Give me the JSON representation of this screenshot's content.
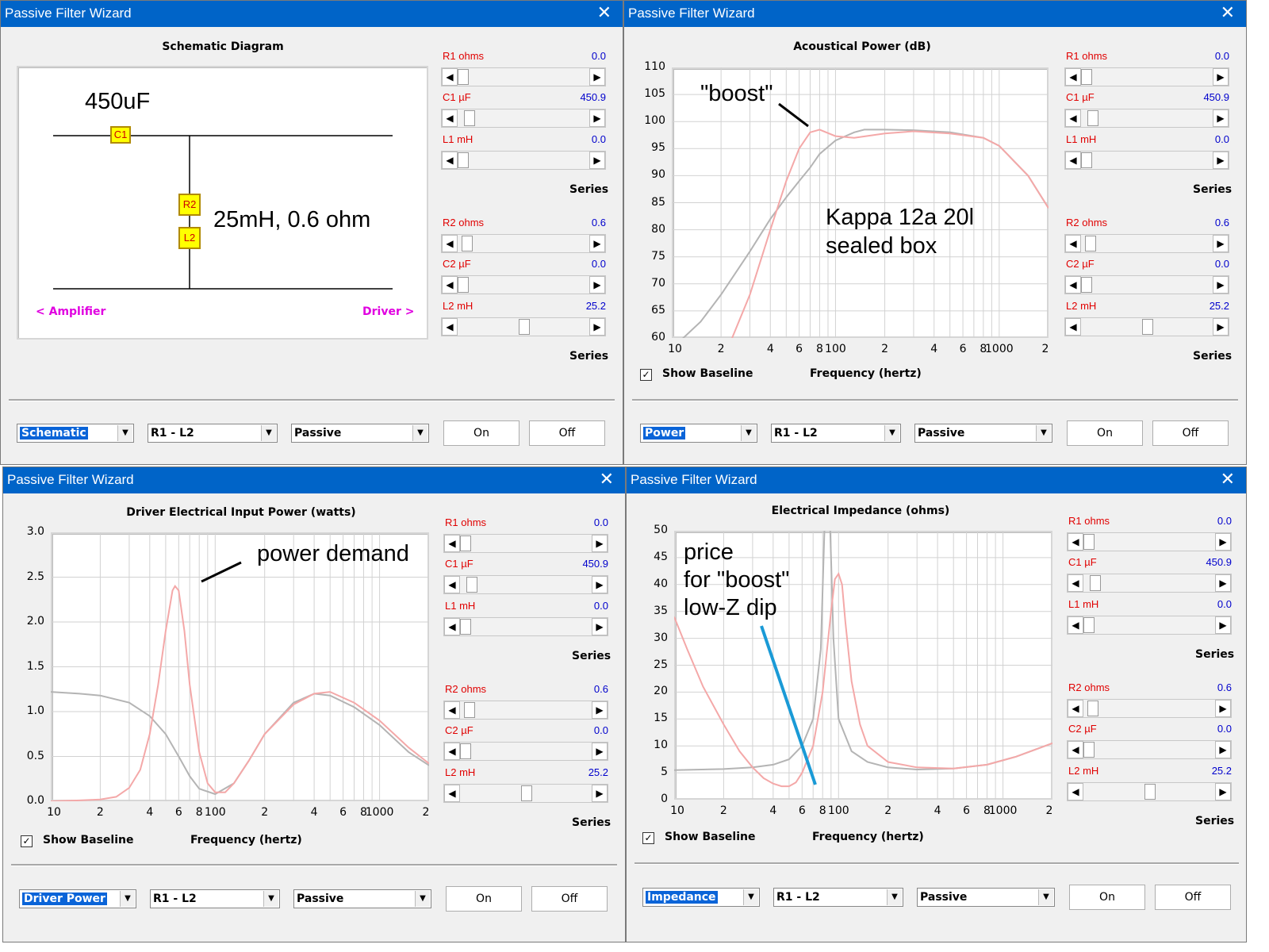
{
  "windows": [
    {
      "title": "Passive Filter Wizard",
      "panel_title": "Schematic Diagram",
      "view_selected": "Schematic",
      "network_selected": "R1 - L2",
      "type_selected": "Passive",
      "on_label": "On",
      "off_label": "Off"
    },
    {
      "title": "Passive Filter Wizard",
      "panel_title": "Acoustical Power (dB)",
      "view_selected": "Power",
      "network_selected": "R1 - L2",
      "type_selected": "Passive",
      "on_label": "On",
      "off_label": "Off",
      "show_baseline": "Show Baseline",
      "x_title": "Frequency (hertz)"
    },
    {
      "title": "Passive Filter Wizard",
      "panel_title": "Driver Electrical Input Power (watts)",
      "view_selected": "Driver Power",
      "network_selected": "R1 - L2",
      "type_selected": "Passive",
      "on_label": "On",
      "off_label": "Off",
      "show_baseline": "Show Baseline",
      "x_title": "Frequency (hertz)"
    },
    {
      "title": "Passive Filter Wizard",
      "panel_title": "Electrical Impedance (ohms)",
      "view_selected": "Impedance",
      "network_selected": "R1 - L2",
      "type_selected": "Passive",
      "on_label": "On",
      "off_label": "Off",
      "show_baseline": "Show Baseline",
      "x_title": "Frequency (hertz)"
    }
  ],
  "sliders": [
    {
      "label": "R1  ohms",
      "value": "0.0",
      "fraction": 0.0
    },
    {
      "label": "C1  µF",
      "value": "450.9",
      "fraction": 0.05
    },
    {
      "label": "L1  mH",
      "value": "0.0",
      "fraction": 0.0
    },
    {
      "label": "R2  ohms",
      "value": "0.6",
      "fraction": 0.03
    },
    {
      "label": "C2  µF",
      "value": "0.0",
      "fraction": 0.0
    },
    {
      "label": "L2  mH",
      "value": "25.2",
      "fraction": 0.5
    }
  ],
  "series_label": "Series",
  "schematic": {
    "c1_label": "C1",
    "r2_label": "R2",
    "l2_label": "L2",
    "amplifier": "<  Amplifier",
    "driver": "Driver  >",
    "annotation_c1": "450uF",
    "annotation_branch": "25mH, 0.6 ohm"
  },
  "annotations": {
    "boost": "\"boost\"",
    "box_line1": "Kappa 12a 20l",
    "box_line2": "sealed box",
    "power_demand": "power demand",
    "price_line1": "price",
    "price_line2": "for \"boost\"",
    "price_line3": "low-Z dip"
  },
  "colors": {
    "baseline": "#b4b4b4",
    "filtered": "#f4a8a8",
    "grid": "#d2d2d2",
    "title_bar": "#0064c8",
    "label_red": "#e00000",
    "value_blue": "#0000cc",
    "pointer_blue": "#1a9ad6"
  },
  "chart_data": [
    {
      "type": "line",
      "title": "Acoustical Power (dB)",
      "xlabel": "Frequency (hertz)",
      "x_scale": "log",
      "xlim": [
        10,
        2000
      ],
      "ylim": [
        60,
        110
      ],
      "y_ticks": [
        "110",
        "105",
        "100",
        "95",
        "90",
        "85",
        "80",
        "75",
        "70",
        "65",
        "60"
      ],
      "x_ticks": [
        "10",
        "2",
        "4",
        "6",
        "8",
        "100",
        "2",
        "4",
        "6",
        "8",
        "1000",
        "2"
      ],
      "series": [
        {
          "values": [
            [
              10,
              58
            ],
            [
              15,
              63
            ],
            [
              20,
              68
            ],
            [
              30,
              76
            ],
            [
              40,
              82
            ],
            [
              50,
              86
            ],
            [
              60,
              89
            ],
            [
              70,
              91.5
            ],
            [
              80,
              94
            ],
            [
              100,
              96.5
            ],
            [
              130,
              98
            ],
            [
              150,
              98.5
            ],
            [
              200,
              98.5
            ],
            [
              300,
              98.4
            ],
            [
              500,
              98
            ],
            [
              800,
              97
            ],
            [
              1000,
              95.5
            ],
            [
              1500,
              90
            ],
            [
              2000,
              84
            ]
          ]
        },
        {
          "values": [
            [
              20,
              55
            ],
            [
              30,
              68
            ],
            [
              40,
              80
            ],
            [
              50,
              89
            ],
            [
              60,
              95
            ],
            [
              70,
              98
            ],
            [
              80,
              98.5
            ],
            [
              100,
              97.3
            ],
            [
              130,
              97
            ],
            [
              200,
              97.8
            ],
            [
              300,
              98.2
            ],
            [
              500,
              97.8
            ],
            [
              800,
              97
            ],
            [
              1000,
              95.5
            ],
            [
              1500,
              90
            ],
            [
              2000,
              84
            ]
          ]
        }
      ]
    },
    {
      "type": "line",
      "title": "Driver Electrical Input Power (watts)",
      "xlabel": "Frequency (hertz)",
      "x_scale": "log",
      "xlim": [
        10,
        2000
      ],
      "ylim": [
        0,
        3.0
      ],
      "y_ticks": [
        "3.0",
        "2.5",
        "2.0",
        "1.5",
        "1.0",
        "0.5",
        "0.0"
      ],
      "x_ticks": [
        "10",
        "2",
        "4",
        "6",
        "8",
        "100",
        "2",
        "4",
        "6",
        "8",
        "1000",
        "2"
      ],
      "series": [
        {
          "values": [
            [
              10,
              1.22
            ],
            [
              15,
              1.2
            ],
            [
              20,
              1.18
            ],
            [
              30,
              1.1
            ],
            [
              40,
              0.95
            ],
            [
              50,
              0.75
            ],
            [
              60,
              0.5
            ],
            [
              70,
              0.28
            ],
            [
              80,
              0.14
            ],
            [
              100,
              0.08
            ],
            [
              130,
              0.2
            ],
            [
              160,
              0.45
            ],
            [
              200,
              0.75
            ],
            [
              300,
              1.1
            ],
            [
              400,
              1.2
            ],
            [
              500,
              1.18
            ],
            [
              700,
              1.05
            ],
            [
              1000,
              0.85
            ],
            [
              1500,
              0.55
            ],
            [
              2000,
              0.4
            ]
          ]
        },
        {
          "values": [
            [
              10,
              0.0
            ],
            [
              15,
              0.01
            ],
            [
              20,
              0.02
            ],
            [
              25,
              0.05
            ],
            [
              30,
              0.15
            ],
            [
              35,
              0.35
            ],
            [
              40,
              0.75
            ],
            [
              45,
              1.3
            ],
            [
              50,
              1.9
            ],
            [
              55,
              2.35
            ],
            [
              57,
              2.4
            ],
            [
              60,
              2.35
            ],
            [
              65,
              1.9
            ],
            [
              70,
              1.3
            ],
            [
              80,
              0.55
            ],
            [
              90,
              0.2
            ],
            [
              100,
              0.1
            ],
            [
              115,
              0.1
            ],
            [
              130,
              0.2
            ],
            [
              160,
              0.45
            ],
            [
              200,
              0.75
            ],
            [
              300,
              1.08
            ],
            [
              400,
              1.2
            ],
            [
              500,
              1.22
            ],
            [
              700,
              1.1
            ],
            [
              1000,
              0.9
            ],
            [
              1500,
              0.6
            ],
            [
              2000,
              0.42
            ]
          ]
        }
      ]
    },
    {
      "type": "line",
      "title": "Electrical Impedance (ohms)",
      "xlabel": "Frequency (hertz)",
      "x_scale": "log",
      "xlim": [
        10,
        2000
      ],
      "ylim": [
        0,
        50
      ],
      "y_ticks": [
        "50",
        "45",
        "40",
        "35",
        "30",
        "25",
        "20",
        "15",
        "10",
        "5",
        "0"
      ],
      "x_ticks": [
        "10",
        "2",
        "4",
        "6",
        "8",
        "100",
        "2",
        "4",
        "6",
        "8",
        "1000",
        "2"
      ],
      "series": [
        {
          "values": [
            [
              10,
              5.5
            ],
            [
              20,
              5.7
            ],
            [
              30,
              6.0
            ],
            [
              40,
              6.5
            ],
            [
              50,
              7.5
            ],
            [
              60,
              10
            ],
            [
              70,
              15
            ],
            [
              78,
              28
            ],
            [
              83,
              55
            ],
            [
              88,
              55
            ],
            [
              93,
              30
            ],
            [
              100,
              15
            ],
            [
              120,
              9
            ],
            [
              150,
              7
            ],
            [
              200,
              6
            ],
            [
              300,
              5.6
            ],
            [
              500,
              5.8
            ],
            [
              800,
              6.5
            ],
            [
              1200,
              8
            ],
            [
              2000,
              10.5
            ]
          ]
        },
        {
          "values": [
            [
              10,
              34
            ],
            [
              12,
              28
            ],
            [
              15,
              21
            ],
            [
              20,
              14
            ],
            [
              25,
              9
            ],
            [
              30,
              6
            ],
            [
              35,
              4
            ],
            [
              40,
              3
            ],
            [
              45,
              2.5
            ],
            [
              50,
              2.5
            ],
            [
              55,
              3.2
            ],
            [
              60,
              5
            ],
            [
              70,
              10
            ],
            [
              80,
              20
            ],
            [
              90,
              35
            ],
            [
              95,
              41
            ],
            [
              100,
              42
            ],
            [
              105,
              40
            ],
            [
              110,
              33
            ],
            [
              120,
              22
            ],
            [
              135,
              14
            ],
            [
              150,
              10
            ],
            [
              200,
              7
            ],
            [
              300,
              6
            ],
            [
              500,
              5.8
            ],
            [
              800,
              6.5
            ],
            [
              1200,
              8
            ],
            [
              2000,
              10.5
            ]
          ]
        }
      ]
    }
  ]
}
